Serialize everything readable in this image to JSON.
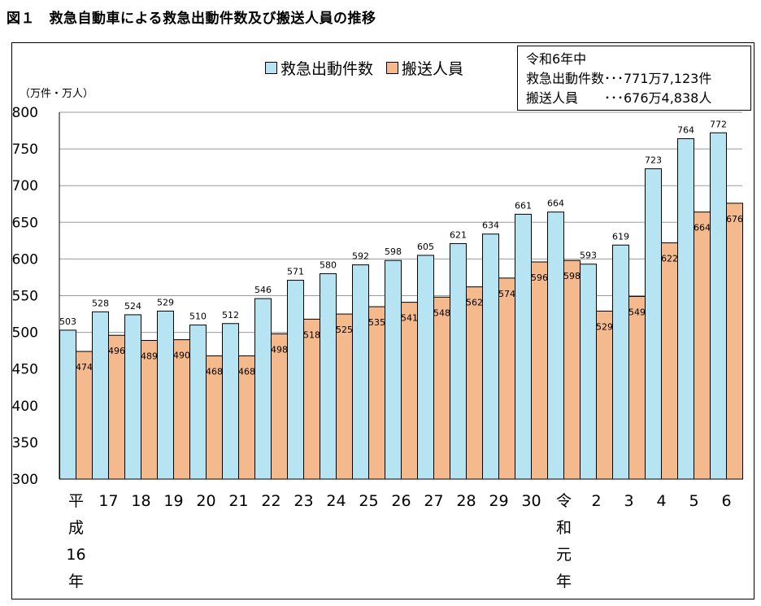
{
  "figure": {
    "title": "図１　救急自動車による救急出動件数及び搬送人員の推移",
    "unit_label": "（万件・万人）"
  },
  "info_box": {
    "line1": "令和6年中",
    "line2": "救急出動件数･･･771万7,123件",
    "line3": "搬送人員　　･･･676万4,838人"
  },
  "colors": {
    "dispatch": "#b7e4f2",
    "transport": "#f5b98e",
    "grid": "#999999",
    "bar_stroke": "#000000"
  },
  "chart_data": {
    "type": "bar",
    "categories": [
      "平成16年",
      "17",
      "18",
      "19",
      "20",
      "21",
      "22",
      "23",
      "24",
      "25",
      "26",
      "27",
      "28",
      "29",
      "30",
      "令和元年",
      "2",
      "3",
      "4",
      "5",
      "6"
    ],
    "category_display": [
      "平\n成\n16\n年",
      "17",
      "18",
      "19",
      "20",
      "21",
      "22",
      "23",
      "24",
      "25",
      "26",
      "27",
      "28",
      "29",
      "30",
      "令\n和\n元\n年",
      "2",
      "3",
      "4",
      "5",
      "6"
    ],
    "series": [
      {
        "name": "救急出動件数",
        "values": [
          503,
          528,
          524,
          529,
          510,
          512,
          546,
          571,
          580,
          592,
          598,
          605,
          621,
          634,
          661,
          664,
          593,
          619,
          723,
          764,
          772
        ]
      },
      {
        "name": "搬送人員",
        "values": [
          474,
          496,
          489,
          490,
          468,
          468,
          498,
          518,
          525,
          535,
          541,
          548,
          562,
          574,
          596,
          598,
          529,
          549,
          622,
          664,
          676
        ]
      }
    ],
    "ylim": [
      300,
      800
    ],
    "yticks": [
      300,
      350,
      400,
      450,
      500,
      550,
      600,
      650,
      700,
      750,
      800
    ],
    "grid": true,
    "legend_placement": "top"
  }
}
